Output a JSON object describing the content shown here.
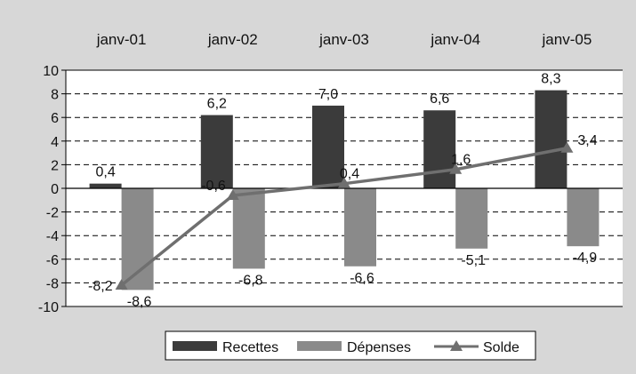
{
  "colors": {
    "background": "#d7d7d7",
    "plot_area": "#ffffff",
    "recettes": "#3b3b3b",
    "depenses": "#8a8a8a",
    "solde": "#6f6f6f",
    "grid": "#000000"
  },
  "chart_data": {
    "type": "bar",
    "categories": [
      "janv-01",
      "janv-02",
      "janv-03",
      "janv-04",
      "janv-05"
    ],
    "category_axis_position": "top",
    "ylim": [
      -10,
      10
    ],
    "yticks": [
      "10",
      "8",
      "6",
      "4",
      "2",
      "0",
      "-2",
      "-4",
      "-6",
      "-8",
      "-10"
    ],
    "grid": "horizontal dashed",
    "legend_position": "bottom",
    "series": [
      {
        "name": "Recettes",
        "kind": "bar",
        "values": [
          0.4,
          6.2,
          7.0,
          6.6,
          8.3
        ],
        "labels": [
          "0,4",
          "6,2",
          "7,0",
          "6,6",
          "8,3"
        ]
      },
      {
        "name": "Dépenses",
        "kind": "bar",
        "values": [
          -8.6,
          -6.8,
          -6.6,
          -5.1,
          -4.9
        ],
        "labels": [
          "-8,6",
          "-6,8",
          "-6,6",
          "-5,1",
          "-4,9"
        ]
      },
      {
        "name": "Solde",
        "kind": "line",
        "marker": "triangle",
        "values": [
          -8.2,
          -0.6,
          0.4,
          1.6,
          3.4
        ],
        "labels": [
          "-8,2",
          "-0,6",
          "0,4",
          "1,6",
          "3,4"
        ]
      }
    ]
  }
}
